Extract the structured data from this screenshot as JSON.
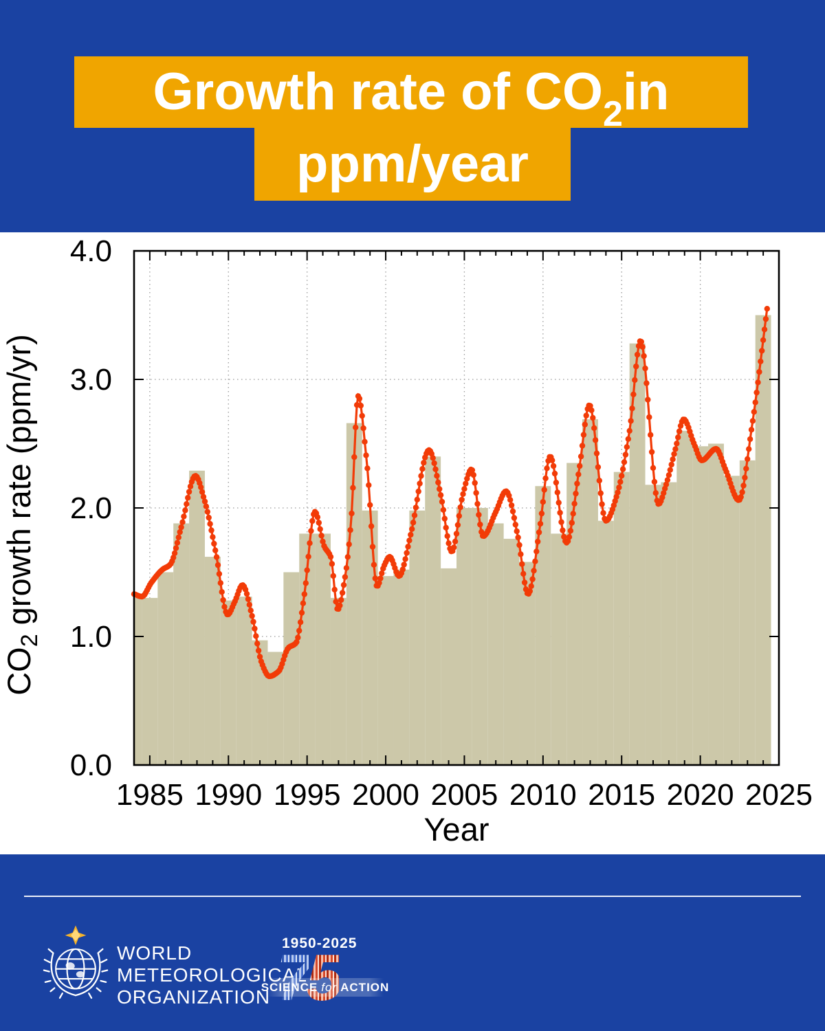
{
  "colors": {
    "band_blue": "#1a42a2",
    "banner_orange": "#f0a500",
    "bar_fill": "#ccc8a9",
    "line_color": "#f23b07",
    "grid_color": "#999999",
    "axis_color": "#000000"
  },
  "header": {
    "title_line1_pre": "Growth rate of CO",
    "title_sub": "2",
    "title_line1_post": " in",
    "title_line2": "ppm/year"
  },
  "chart": {
    "y_axis_label_parts": {
      "pre": "CO",
      "sub": "2",
      "post": " growth rate (ppm/yr)"
    },
    "x_axis_label": "Year",
    "y_tick_labels": [
      "0.0",
      "1.0",
      "2.0",
      "3.0",
      "4.0"
    ],
    "x_tick_labels": [
      "1985",
      "1990",
      "1995",
      "2000",
      "2005",
      "2010",
      "2015",
      "2020",
      "2025"
    ]
  },
  "chart_data": {
    "type": "bar+line",
    "title": "Growth rate of CO2 in ppm/year",
    "xlabel": "Year",
    "ylabel": "CO2 growth rate (ppm/yr)",
    "xlim": [
      1984,
      2025
    ],
    "ylim": [
      0.0,
      4.0
    ],
    "grid": "dotted, at 5-year and 1.0-ppm intervals",
    "x_major_gridlines": [
      1985,
      1990,
      1995,
      2000,
      2005,
      2010,
      2015,
      2020
    ],
    "y_major_gridlines": [
      1.0,
      2.0,
      3.0
    ],
    "y_ticks": [
      0.0,
      1.0,
      2.0,
      3.0,
      4.0
    ],
    "bars": {
      "description": "Annual mean CO2 growth rate (ppm/yr), bars centered on year",
      "years": [
        1984,
        1985,
        1986,
        1987,
        1988,
        1989,
        1990,
        1991,
        1992,
        1993,
        1994,
        1995,
        1996,
        1997,
        1998,
        1999,
        2000,
        2001,
        2002,
        2003,
        2004,
        2005,
        2006,
        2007,
        2008,
        2009,
        2010,
        2011,
        2012,
        2013,
        2014,
        2015,
        2016,
        2017,
        2018,
        2019,
        2020,
        2021,
        2022,
        2023,
        2024
      ],
      "values": [
        1.3,
        1.3,
        1.5,
        1.88,
        2.29,
        1.62,
        1.28,
        1.31,
        0.97,
        0.88,
        1.5,
        1.8,
        1.8,
        1.3,
        2.66,
        1.98,
        1.47,
        1.52,
        1.98,
        2.4,
        1.53,
        2.0,
        2.0,
        1.88,
        1.76,
        1.58,
        2.17,
        1.8,
        2.35,
        2.69,
        1.9,
        2.28,
        3.28,
        2.18,
        2.2,
        2.6,
        2.48,
        2.5,
        2.25,
        2.37,
        3.5
      ]
    },
    "monthly_line": {
      "description": "Smoothed monthly CO2 growth rate curve with dot markers, key inflection points [decimal_year, ppm/yr]",
      "keypoints": [
        [
          1984.0,
          1.33
        ],
        [
          1984.5,
          1.31
        ],
        [
          1985.1,
          1.42
        ],
        [
          1985.8,
          1.52
        ],
        [
          1986.3,
          1.56
        ],
        [
          1987.0,
          1.85
        ],
        [
          1987.9,
          2.25
        ],
        [
          1988.5,
          2.05
        ],
        [
          1989.2,
          1.65
        ],
        [
          1989.95,
          1.17
        ],
        [
          1990.4,
          1.27
        ],
        [
          1990.9,
          1.4
        ],
        [
          1991.5,
          1.16
        ],
        [
          1992.1,
          0.8
        ],
        [
          1992.6,
          0.69
        ],
        [
          1993.2,
          0.73
        ],
        [
          1993.8,
          0.91
        ],
        [
          1994.3,
          0.95
        ],
        [
          1994.8,
          1.3
        ],
        [
          1995.5,
          1.97
        ],
        [
          1996.1,
          1.7
        ],
        [
          1996.5,
          1.62
        ],
        [
          1996.95,
          1.21
        ],
        [
          1997.4,
          1.45
        ],
        [
          1997.8,
          1.9
        ],
        [
          1998.25,
          2.87
        ],
        [
          1998.8,
          2.35
        ],
        [
          1999.45,
          1.39
        ],
        [
          1999.9,
          1.55
        ],
        [
          2000.25,
          1.62
        ],
        [
          2000.85,
          1.47
        ],
        [
          2001.6,
          1.8
        ],
        [
          2002.75,
          2.45
        ],
        [
          2003.5,
          2.1
        ],
        [
          2004.2,
          1.66
        ],
        [
          2004.9,
          2.1
        ],
        [
          2005.45,
          2.3
        ],
        [
          2006.2,
          1.78
        ],
        [
          2007.0,
          1.97
        ],
        [
          2007.65,
          2.13
        ],
        [
          2008.4,
          1.78
        ],
        [
          2009.05,
          1.33
        ],
        [
          2009.8,
          1.85
        ],
        [
          2010.45,
          2.4
        ],
        [
          2011.5,
          1.73
        ],
        [
          2012.3,
          2.3
        ],
        [
          2012.95,
          2.8
        ],
        [
          2014.0,
          1.9
        ],
        [
          2014.7,
          2.1
        ],
        [
          2015.5,
          2.6
        ],
        [
          2016.2,
          3.3
        ],
        [
          2017.35,
          2.03
        ],
        [
          2017.8,
          2.17
        ],
        [
          2018.4,
          2.45
        ],
        [
          2018.95,
          2.69
        ],
        [
          2019.6,
          2.5
        ],
        [
          2020.1,
          2.37
        ],
        [
          2021.0,
          2.46
        ],
        [
          2021.6,
          2.3
        ],
        [
          2022.45,
          2.06
        ],
        [
          2023.3,
          2.65
        ],
        [
          2024.25,
          3.55
        ]
      ]
    }
  },
  "footer": {
    "org_lines": [
      "WORLD",
      "METEOROLOGICAL",
      "ORGANIZATION"
    ],
    "anniv_years": "1950-2025",
    "anniv_digit_7": "7",
    "anniv_digit_5": "5",
    "tagline_pre": "SCIENCE",
    "tagline_italic": "for",
    "tagline_post": "ACTION"
  }
}
